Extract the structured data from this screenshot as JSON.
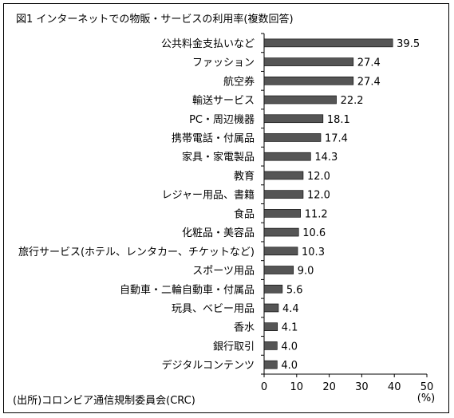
{
  "title": "図1 インターネットでの物販・サービスの利用率(複数回答)",
  "source": "(出所)コロンビア通信規制委員会(CRC)",
  "chart_data": {
    "type": "bar",
    "orientation": "horizontal",
    "categories": [
      "公共料金支払いなど",
      "ファッション",
      "航空券",
      "輸送サービス",
      "PC・周辺機器",
      "携帯電話・付属品",
      "家具・家電製品",
      "教育",
      "レジャー用品、書籍",
      "食品",
      "化粧品・美容品",
      "旅行サービス(ホテル、レンタカー、チケットなど)",
      "スポーツ用品",
      "自動車・二輪自動車・付属品",
      "玩具、ベビー用品",
      "香水",
      "銀行取引",
      "デジタルコンテンツ"
    ],
    "values": [
      39.5,
      27.4,
      27.4,
      22.2,
      18.1,
      17.4,
      14.3,
      12.0,
      12.0,
      11.2,
      10.6,
      10.3,
      9.0,
      5.6,
      4.4,
      4.1,
      4.0,
      4.0
    ],
    "value_labels": [
      "39.5",
      "27.4",
      "27.4",
      "22.2",
      "18.1",
      "17.4",
      "14.3",
      "12.0",
      "12.0",
      "11.2",
      "10.6",
      "10.3",
      "9.0",
      "5.6",
      "4.4",
      "4.1",
      "4.0",
      "4.0"
    ],
    "xlim": [
      0,
      50
    ],
    "xticks": [
      "0",
      "10",
      "20",
      "30",
      "40",
      "50"
    ],
    "unit_label": "(%)",
    "bar_color": "#555555",
    "grid": false
  }
}
